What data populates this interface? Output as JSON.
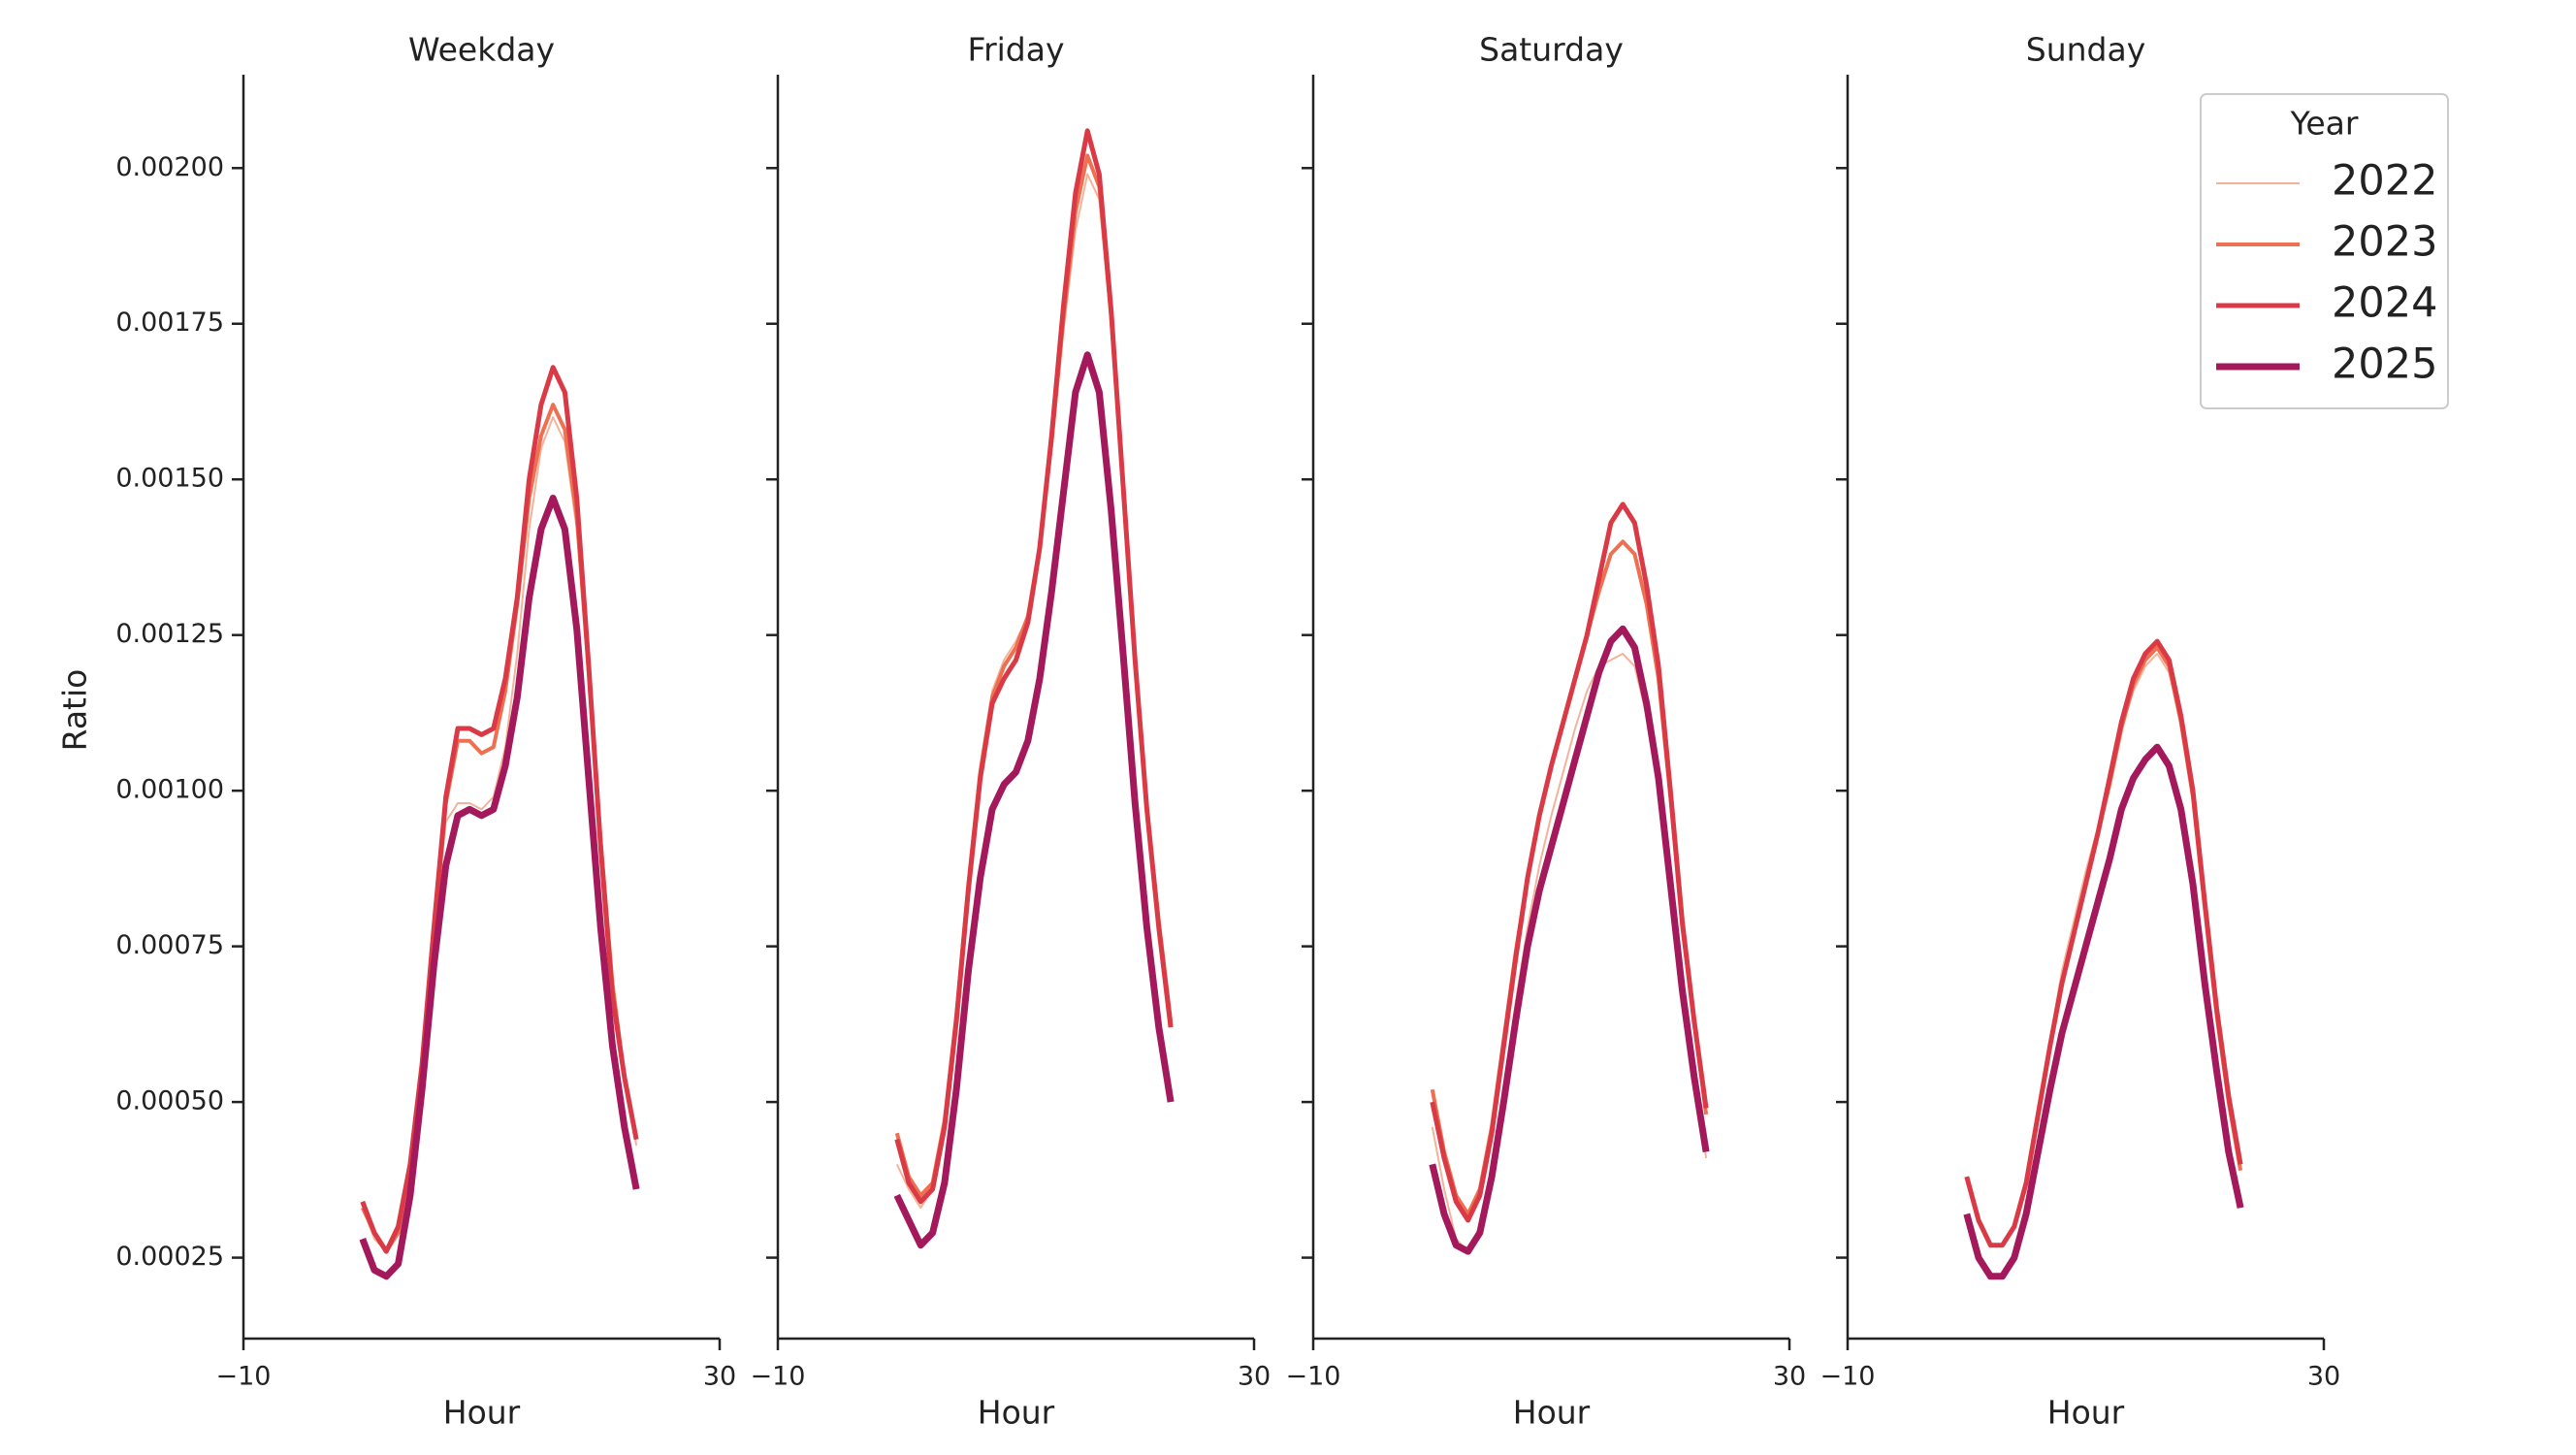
{
  "chart_data": [
    {
      "type": "line",
      "title": "Weekday",
      "x_label": "Hour",
      "y_label": "Ratio",
      "x": [
        0,
        1,
        2,
        3,
        4,
        5,
        6,
        7,
        8,
        9,
        10,
        11,
        12,
        13,
        14,
        15,
        16,
        17,
        18,
        19,
        20,
        21,
        22,
        23
      ],
      "xlim": [
        -10,
        30
      ],
      "xticks": [
        {
          "value": -10,
          "label": "−10"
        },
        30
      ],
      "ylim": [
        0.00012,
        0.00215
      ],
      "yticks": [
        0.00025,
        {
          "value": 0.0005,
          "label": "0.00050"
        },
        0.00075,
        {
          "value": 0.001,
          "label": "0.00100"
        },
        0.00125,
        {
          "value": 0.0015,
          "label": "0.00150"
        },
        0.00175,
        {
          "value": 0.002,
          "label": "0.00200"
        }
      ],
      "series": [
        {
          "color": "#f3b39a",
          "values": [
            0.00033,
            0.00028,
            0.00026,
            0.00029,
            0.00039,
            0.00055,
            0.00076,
            0.00095,
            0.00098,
            0.00098,
            0.00097,
            0.00099,
            0.00107,
            0.00122,
            0.00142,
            0.00155,
            0.0016,
            0.00156,
            0.00142,
            0.00118,
            0.00092,
            0.0007,
            0.00055,
            0.00043
          ]
        },
        {
          "color": "#ee7050",
          "values": [
            0.00033,
            0.00029,
            0.00026,
            0.00029,
            0.0004,
            0.00056,
            0.00077,
            0.00098,
            0.00108,
            0.00108,
            0.00106,
            0.00107,
            0.00116,
            0.0013,
            0.00147,
            0.00157,
            0.00162,
            0.00158,
            0.00144,
            0.00119,
            0.00092,
            0.00069,
            0.00054,
            0.00044
          ]
        },
        {
          "color": "#d93a46",
          "values": [
            0.00034,
            0.00029,
            0.00026,
            0.0003,
            0.0004,
            0.00056,
            0.00078,
            0.00099,
            0.0011,
            0.0011,
            0.00109,
            0.0011,
            0.00118,
            0.00131,
            0.0015,
            0.00162,
            0.00168,
            0.00164,
            0.00147,
            0.0012,
            0.00091,
            0.00067,
            0.00054,
            0.00044
          ]
        },
        {
          "color": "#a3195b",
          "values": [
            0.00028,
            0.00023,
            0.00022,
            0.00024,
            0.00035,
            0.00052,
            0.00072,
            0.00088,
            0.00096,
            0.00097,
            0.00096,
            0.00097,
            0.00104,
            0.00115,
            0.00131,
            0.00142,
            0.00147,
            0.00142,
            0.00126,
            0.00102,
            0.00078,
            0.00059,
            0.00046,
            0.00036
          ]
        }
      ]
    },
    {
      "type": "line",
      "title": "Friday",
      "x_label": "Hour",
      "x": [
        0,
        1,
        2,
        3,
        4,
        5,
        6,
        7,
        8,
        9,
        10,
        11,
        12,
        13,
        14,
        15,
        16,
        17,
        18,
        19,
        20,
        21,
        22,
        23
      ],
      "xlim": [
        -10,
        30
      ],
      "xticks": [
        {
          "value": -10,
          "label": "−10"
        },
        30
      ],
      "ylim": [
        0.00012,
        0.00215
      ],
      "yticks": [
        0.00025,
        0.0005,
        0.00075,
        0.001,
        0.00125,
        0.0015,
        0.00175,
        0.002
      ],
      "series": [
        {
          "color": "#f3b39a",
          "values": [
            0.0004,
            0.00036,
            0.00033,
            0.00036,
            0.00046,
            0.00063,
            0.00085,
            0.00104,
            0.00116,
            0.00121,
            0.00124,
            0.00128,
            0.00138,
            0.00155,
            0.00174,
            0.0019,
            0.00199,
            0.00195,
            0.00175,
            0.00148,
            0.0012,
            0.00096,
            0.00078,
            0.00062
          ]
        },
        {
          "color": "#ee7050",
          "values": [
            0.00045,
            0.00038,
            0.00035,
            0.00037,
            0.00047,
            0.00064,
            0.00085,
            0.00103,
            0.00115,
            0.0012,
            0.00123,
            0.00128,
            0.00139,
            0.00156,
            0.00176,
            0.00193,
            0.00202,
            0.00197,
            0.00176,
            0.00149,
            0.00121,
            0.00097,
            0.00079,
            0.00063
          ]
        },
        {
          "color": "#d93a46",
          "values": [
            0.00044,
            0.00037,
            0.00034,
            0.00036,
            0.00046,
            0.00063,
            0.00084,
            0.00102,
            0.00114,
            0.00118,
            0.00121,
            0.00127,
            0.00139,
            0.00157,
            0.00178,
            0.00196,
            0.00206,
            0.00199,
            0.00177,
            0.00149,
            0.00121,
            0.00097,
            0.00078,
            0.00062
          ]
        },
        {
          "color": "#a3195b",
          "values": [
            0.00035,
            0.00031,
            0.00027,
            0.00029,
            0.00037,
            0.00052,
            0.00071,
            0.00086,
            0.00097,
            0.00101,
            0.00103,
            0.00108,
            0.00118,
            0.00132,
            0.00148,
            0.00164,
            0.0017,
            0.00164,
            0.00145,
            0.00122,
            0.00098,
            0.00078,
            0.00062,
            0.0005
          ]
        }
      ]
    },
    {
      "type": "line",
      "title": "Saturday",
      "x_label": "Hour",
      "x": [
        0,
        1,
        2,
        3,
        4,
        5,
        6,
        7,
        8,
        9,
        10,
        11,
        12,
        13,
        14,
        15,
        16,
        17,
        18,
        19,
        20,
        21,
        22,
        23
      ],
      "xlim": [
        -10,
        30
      ],
      "xticks": [
        {
          "value": -10,
          "label": "−10"
        },
        30
      ],
      "ylim": [
        0.00012,
        0.00215
      ],
      "yticks": [
        0.00025,
        0.0005,
        0.00075,
        0.001,
        0.00125,
        0.0015,
        0.00175,
        0.002
      ],
      "series": [
        {
          "color": "#f3b39a",
          "values": [
            0.00046,
            0.00036,
            0.00028,
            0.00026,
            0.0003,
            0.0004,
            0.00052,
            0.00066,
            0.00078,
            0.00088,
            0.00096,
            0.00103,
            0.0011,
            0.00116,
            0.0012,
            0.00121,
            0.00122,
            0.0012,
            0.00112,
            0.001,
            0.00084,
            0.00068,
            0.00054,
            0.00041
          ]
        },
        {
          "color": "#ee7050",
          "values": [
            0.00052,
            0.00042,
            0.00035,
            0.00032,
            0.00036,
            0.00046,
            0.0006,
            0.00074,
            0.00086,
            0.00096,
            0.00104,
            0.00111,
            0.00118,
            0.00125,
            0.00132,
            0.00138,
            0.0014,
            0.00138,
            0.0013,
            0.00118,
            0.00099,
            0.00078,
            0.00063,
            0.00048
          ]
        },
        {
          "color": "#d93a46",
          "values": [
            0.0005,
            0.00041,
            0.00034,
            0.00031,
            0.00035,
            0.00045,
            0.00059,
            0.00073,
            0.00086,
            0.00096,
            0.00104,
            0.00111,
            0.00118,
            0.00125,
            0.00134,
            0.00143,
            0.00146,
            0.00143,
            0.00133,
            0.0012,
            0.001,
            0.00079,
            0.00063,
            0.00049
          ]
        },
        {
          "color": "#a3195b",
          "values": [
            0.0004,
            0.00032,
            0.00027,
            0.00026,
            0.00029,
            0.00038,
            0.0005,
            0.00063,
            0.00075,
            0.00084,
            0.00091,
            0.00098,
            0.00105,
            0.00112,
            0.00119,
            0.00124,
            0.00126,
            0.00123,
            0.00114,
            0.00102,
            0.00085,
            0.00068,
            0.00054,
            0.00042
          ]
        }
      ]
    },
    {
      "type": "line",
      "title": "Sunday",
      "x_label": "Hour",
      "x": [
        0,
        1,
        2,
        3,
        4,
        5,
        6,
        7,
        8,
        9,
        10,
        11,
        12,
        13,
        14,
        15,
        16,
        17,
        18,
        19,
        20,
        21,
        22,
        23
      ],
      "xlim": [
        -10,
        30
      ],
      "xticks": [
        {
          "value": -10,
          "label": "−10"
        },
        30
      ],
      "ylim": [
        0.00012,
        0.00215
      ],
      "yticks": [
        0.00025,
        0.0005,
        0.00075,
        0.001,
        0.00125,
        0.0015,
        0.00175,
        0.002
      ],
      "legend": "upper right",
      "legend_title": "Year",
      "series": [
        {
          "name": "2022",
          "color": "#f3b39a",
          "values": [
            0.00037,
            0.00031,
            0.00027,
            0.00027,
            0.0003,
            0.00037,
            0.00048,
            0.0006,
            0.00071,
            0.00079,
            0.00087,
            0.00094,
            0.00102,
            0.0011,
            0.00116,
            0.0012,
            0.00122,
            0.00119,
            0.00111,
            0.00099,
            0.00081,
            0.00064,
            0.00051,
            0.0004
          ]
        },
        {
          "name": "2023",
          "color": "#ee7050",
          "values": [
            0.00038,
            0.00031,
            0.00027,
            0.00027,
            0.0003,
            0.00037,
            0.00048,
            0.00059,
            0.00069,
            0.00077,
            0.00085,
            0.00093,
            0.00101,
            0.0011,
            0.00117,
            0.00121,
            0.00123,
            0.0012,
            0.00111,
            0.00099,
            0.00081,
            0.00064,
            0.0005,
            0.00039
          ]
        },
        {
          "name": "2024",
          "color": "#d93a46",
          "values": [
            0.00038,
            0.00031,
            0.00027,
            0.00027,
            0.0003,
            0.00037,
            0.00048,
            0.00059,
            0.00069,
            0.00077,
            0.00085,
            0.00093,
            0.00102,
            0.00111,
            0.00118,
            0.00122,
            0.00124,
            0.00121,
            0.00112,
            0.001,
            0.00082,
            0.00065,
            0.00051,
            0.0004
          ]
        },
        {
          "name": "2025",
          "color": "#a3195b",
          "values": [
            0.00032,
            0.00025,
            0.00022,
            0.00022,
            0.00025,
            0.00032,
            0.00042,
            0.00052,
            0.00061,
            0.00068,
            0.00075,
            0.00082,
            0.00089,
            0.00097,
            0.00102,
            0.00105,
            0.00107,
            0.00104,
            0.00097,
            0.00085,
            0.00069,
            0.00055,
            0.00042,
            0.00033
          ]
        }
      ]
    }
  ]
}
